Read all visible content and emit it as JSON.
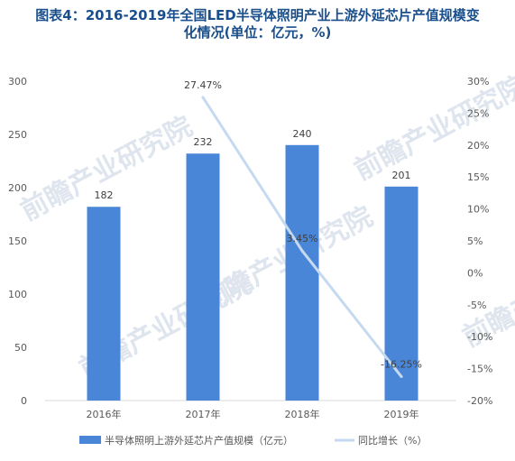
{
  "title_line1": "图表4：2016-2019年全国LED半导体照明产业上游外延芯片产值规模变",
  "title_line2": "化情况(单位：亿元，%)",
  "watermark": "前瞻产业研究院",
  "chart_data": {
    "type": "bar",
    "categories": [
      "2016年",
      "2017年",
      "2018年",
      "2019年"
    ],
    "series": [
      {
        "name": "半导体照明上游外延芯片产值规模（亿元）",
        "type": "bar",
        "axis": "left",
        "color": "#4a86d8",
        "values": [
          182,
          232,
          240,
          201
        ],
        "labels": [
          "182",
          "232",
          "240",
          "201"
        ]
      },
      {
        "name": "同比增长（%）",
        "type": "line",
        "axis": "right",
        "color": "#c5daf0",
        "values": [
          null,
          27.47,
          3.45,
          -16.25
        ],
        "labels": [
          "",
          "27.47%",
          "3.45%",
          "-16.25%"
        ]
      }
    ],
    "y_left": {
      "min": 0,
      "max": 300,
      "ticks": [
        "0",
        "50",
        "100",
        "150",
        "200",
        "250",
        "300"
      ]
    },
    "y_right": {
      "min": -20,
      "max": 30,
      "ticks": [
        "-20%",
        "-15%",
        "-10%",
        "-5%",
        "0%",
        "5%",
        "10%",
        "15%",
        "20%",
        "25%",
        "30%"
      ]
    },
    "grid": false,
    "legend": "bottom"
  }
}
